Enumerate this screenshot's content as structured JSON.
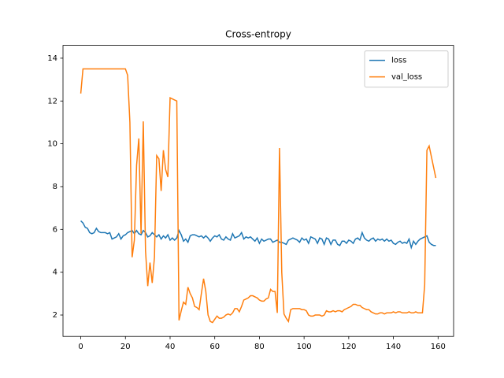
{
  "chart_data": {
    "type": "line",
    "title": "Cross-entropy",
    "x": [
      0,
      1,
      2,
      3,
      4,
      5,
      6,
      7,
      8,
      9,
      10,
      11,
      12,
      13,
      14,
      15,
      16,
      17,
      18,
      19,
      20,
      21,
      22,
      23,
      24,
      25,
      26,
      27,
      28,
      29,
      30,
      31,
      32,
      33,
      34,
      35,
      36,
      37,
      38,
      39,
      40,
      41,
      42,
      43,
      44,
      45,
      46,
      47,
      48,
      49,
      50,
      51,
      52,
      53,
      54,
      55,
      56,
      57,
      58,
      59,
      60,
      61,
      62,
      63,
      64,
      65,
      66,
      67,
      68,
      69,
      70,
      71,
      72,
      73,
      74,
      75,
      76,
      77,
      78,
      79,
      80,
      81,
      82,
      83,
      84,
      85,
      86,
      87,
      88,
      89,
      90,
      91,
      92,
      93,
      94,
      95,
      96,
      97,
      98,
      99,
      100,
      101,
      102,
      103,
      104,
      105,
      106,
      107,
      108,
      109,
      110,
      111,
      112,
      113,
      114,
      115,
      116,
      117,
      118,
      119,
      120,
      121,
      122,
      123,
      124,
      125,
      126,
      127,
      128,
      129,
      130,
      131,
      132,
      133,
      134,
      135,
      136,
      137,
      138,
      139,
      140,
      141,
      142,
      143,
      144,
      145,
      146,
      147,
      148,
      149,
      150,
      151,
      152,
      153,
      154,
      155,
      156,
      157,
      158,
      159
    ],
    "series": [
      {
        "name": "loss",
        "color": "#1f77b4",
        "values": [
          6.4,
          6.3,
          6.1,
          6.05,
          5.85,
          5.8,
          5.85,
          6.05,
          5.9,
          5.85,
          5.85,
          5.85,
          5.8,
          5.85,
          5.55,
          5.6,
          5.65,
          5.8,
          5.55,
          5.7,
          5.75,
          5.85,
          5.9,
          5.95,
          5.8,
          5.95,
          5.8,
          5.75,
          5.95,
          5.85,
          5.65,
          5.7,
          5.85,
          5.75,
          5.65,
          5.75,
          5.55,
          5.7,
          5.6,
          5.75,
          5.5,
          5.6,
          5.5,
          5.6,
          5.95,
          5.75,
          5.45,
          5.55,
          5.4,
          5.7,
          5.75,
          5.75,
          5.7,
          5.65,
          5.7,
          5.6,
          5.7,
          5.6,
          5.45,
          5.6,
          5.7,
          5.65,
          5.75,
          5.55,
          5.5,
          5.65,
          5.55,
          5.5,
          5.8,
          5.6,
          5.65,
          5.7,
          5.85,
          5.55,
          5.65,
          5.6,
          5.65,
          5.55,
          5.45,
          5.6,
          5.35,
          5.55,
          5.45,
          5.5,
          5.55,
          5.55,
          5.4,
          5.45,
          5.5,
          5.4,
          5.4,
          5.35,
          5.3,
          5.5,
          5.55,
          5.6,
          5.55,
          5.5,
          5.4,
          5.6,
          5.5,
          5.55,
          5.35,
          5.65,
          5.6,
          5.55,
          5.35,
          5.6,
          5.55,
          5.3,
          5.6,
          5.55,
          5.3,
          5.5,
          5.5,
          5.3,
          5.25,
          5.45,
          5.45,
          5.35,
          5.5,
          5.45,
          5.35,
          5.55,
          5.6,
          5.5,
          5.85,
          5.6,
          5.5,
          5.45,
          5.55,
          5.6,
          5.45,
          5.55,
          5.5,
          5.55,
          5.45,
          5.55,
          5.45,
          5.5,
          5.35,
          5.3,
          5.4,
          5.45,
          5.35,
          5.4,
          5.35,
          5.55,
          5.15,
          5.45,
          5.3,
          5.45,
          5.55,
          5.6,
          5.65,
          5.7,
          5.4,
          5.3,
          5.25,
          5.25
        ]
      },
      {
        "name": "val_loss",
        "color": "#ff7f0e",
        "values": [
          12.35,
          13.5,
          13.5,
          13.5,
          13.5,
          13.5,
          13.5,
          13.5,
          13.5,
          13.5,
          13.5,
          13.5,
          13.5,
          13.5,
          13.5,
          13.5,
          13.5,
          13.5,
          13.5,
          13.5,
          13.5,
          13.2,
          11,
          4.7,
          5.5,
          9,
          10.25,
          5.8,
          11.05,
          5,
          3.35,
          4.45,
          3.5,
          4.7,
          9.45,
          9.3,
          7.8,
          9.7,
          8.8,
          8.45,
          12.15,
          12.1,
          12.05,
          12,
          1.75,
          2.2,
          2.6,
          2.5,
          3.3,
          3,
          2.8,
          2.4,
          2.35,
          2.25,
          3,
          3.7,
          3.1,
          2,
          1.7,
          1.65,
          1.8,
          1.95,
          1.85,
          1.85,
          1.9,
          2,
          2.05,
          2,
          2.1,
          2.3,
          2.3,
          2.15,
          2.4,
          2.7,
          2.75,
          2.8,
          2.9,
          2.9,
          2.85,
          2.8,
          2.7,
          2.65,
          2.65,
          2.75,
          2.8,
          3.2,
          3.1,
          3.1,
          2.1,
          9.8,
          4,
          2.05,
          1.85,
          1.7,
          2.25,
          2.3,
          2.3,
          2.3,
          2.3,
          2.25,
          2.25,
          2.2,
          2,
          1.95,
          1.95,
          2,
          2,
          2,
          1.95,
          2,
          2.2,
          2.15,
          2.15,
          2.2,
          2.15,
          2.2,
          2.2,
          2.15,
          2.25,
          2.3,
          2.35,
          2.4,
          2.5,
          2.5,
          2.45,
          2.45,
          2.35,
          2.3,
          2.25,
          2.25,
          2.15,
          2.1,
          2.05,
          2.05,
          2.1,
          2.1,
          2.05,
          2.1,
          2.1,
          2.1,
          2.15,
          2.1,
          2.15,
          2.15,
          2.1,
          2.1,
          2.1,
          2.15,
          2.1,
          2.1,
          2.15,
          2.1,
          2.1,
          2.1,
          3.4,
          9.7,
          9.9,
          9.4,
          8.9,
          8.4
        ]
      }
    ],
    "xlim": [
      -7.95,
      166.95
    ],
    "ylim": [
      1.0,
      14.6
    ],
    "xticks": [
      0,
      20,
      40,
      60,
      80,
      100,
      120,
      140,
      160
    ],
    "yticks": [
      2,
      4,
      6,
      8,
      10,
      12,
      14
    ],
    "legend": "upper right",
    "grid": false
  }
}
